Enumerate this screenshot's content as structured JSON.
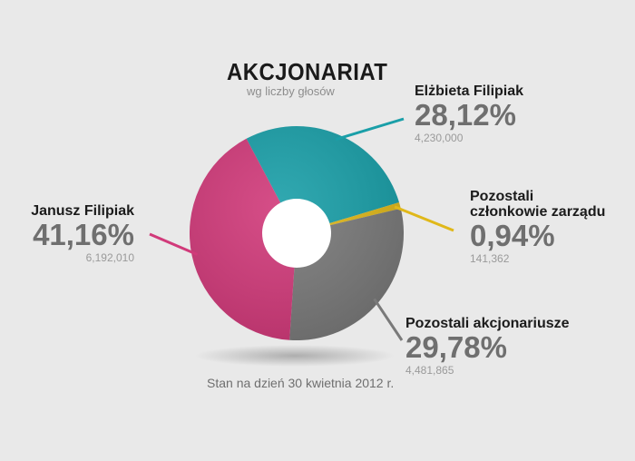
{
  "title": "AKCJONARIAT",
  "subtitle": "wg liczby głosów",
  "footnote": "Stan na dzień 30 kwietnia 2012 r.",
  "chart_data": {
    "type": "pie",
    "variant": "donut",
    "title": "AKCJONARIAT",
    "subtitle": "wg liczby głosów",
    "slices": [
      {
        "name": "Elżbieta Filipiak",
        "percent_label": "28,12%",
        "value": 28.12,
        "count_label": "4,230,000",
        "count": 4230000,
        "color": "#1a9fa8"
      },
      {
        "name": "Pozostali\nczłonkowie zarządu",
        "percent_label": "0,94%",
        "value": 0.94,
        "count_label": "141,362",
        "count": 141362,
        "color": "#e0b81a"
      },
      {
        "name": "Pozostali akcjonariusze",
        "percent_label": "29,78%",
        "value": 29.78,
        "count_label": "4,481,865",
        "count": 4481865,
        "color": "#7a7a7a"
      },
      {
        "name": "Janusz Filipiak",
        "percent_label": "41,16%",
        "value": 41.16,
        "count_label": "6,192,010",
        "count": 6192010,
        "color": "#d13a7a"
      }
    ]
  },
  "colors": {
    "background": "#e9e9e9",
    "hole": "#ffffff",
    "text_dark": "#1b1b1b",
    "text_gray": "#6f6f6f"
  }
}
